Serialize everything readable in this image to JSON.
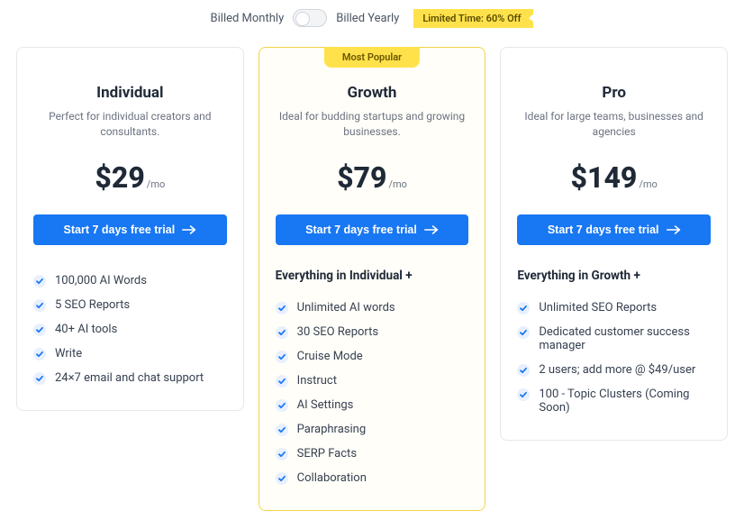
{
  "billing": {
    "monthly_label": "Billed Monthly",
    "yearly_label": "Billed Yearly",
    "promo_text": "Limited Time: 60% Off"
  },
  "cta_label": "Start 7 days free trial",
  "plans": [
    {
      "name": "Individual",
      "subtitle": "Perfect for individual creators and consultants.",
      "price": "$29",
      "period": "/mo",
      "featured": false,
      "everything_label": "",
      "features": [
        "100,000 AI Words",
        "5 SEO Reports",
        "40+ AI tools",
        "Write",
        "24×7 email and chat support"
      ]
    },
    {
      "name": "Growth",
      "subtitle": "Ideal for budding startups and growing businesses.",
      "price": "$79",
      "period": "/mo",
      "featured": true,
      "ribbon": "Most Popular",
      "everything_label": "Everything in Individual +",
      "features": [
        "Unlimited AI words",
        "30 SEO Reports",
        "Cruise Mode",
        "Instruct",
        "AI Settings",
        "Paraphrasing",
        "SERP Facts",
        "Collaboration"
      ]
    },
    {
      "name": "Pro",
      "subtitle": "Ideal for large teams, businesses and agencies",
      "price": "$149",
      "period": "/mo",
      "featured": false,
      "everything_label": "Everything in Growth +",
      "features": [
        "Unlimited SEO Reports",
        "Dedicated customer success manager",
        "2 users; add more @ $49/user",
        "100 - Topic Clusters (Coming Soon)"
      ]
    }
  ],
  "colors": {
    "primary": "#1877f2",
    "promo_bg": "#ffe24b",
    "card_border": "#e5e7eb",
    "featured_border": "#f3d34a",
    "featured_bg": "#fffef8"
  }
}
